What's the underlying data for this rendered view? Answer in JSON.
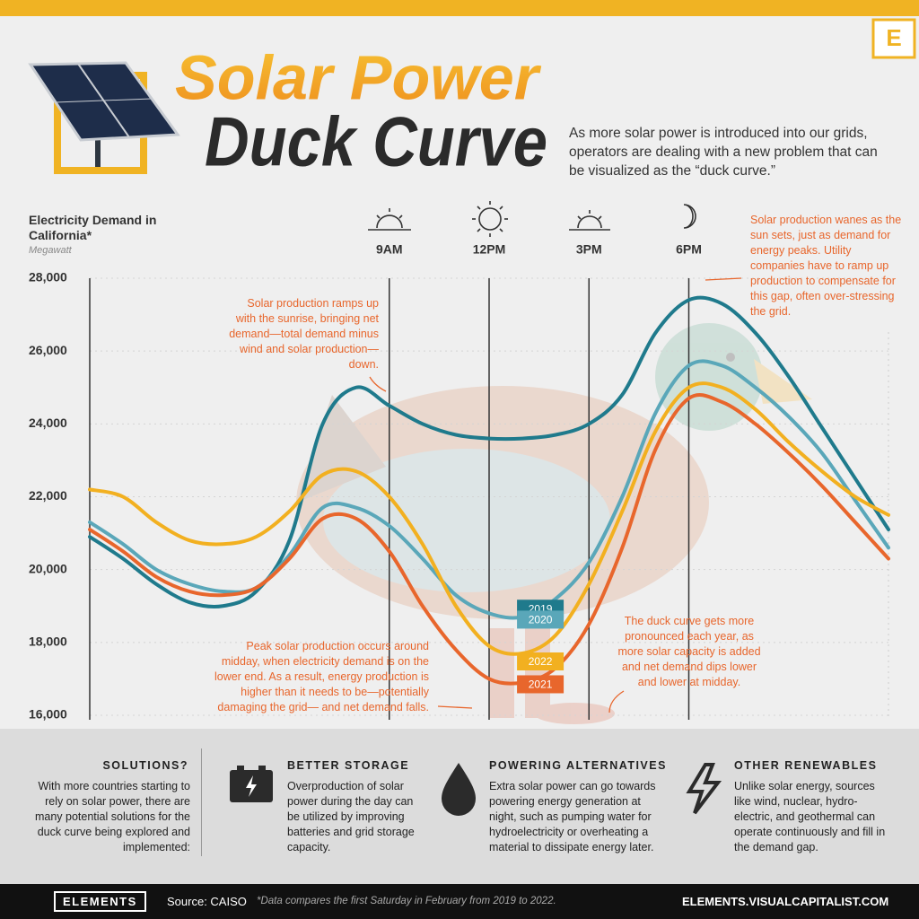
{
  "header": {
    "logo": "E",
    "title_line1": "Solar Power",
    "title_line2": "Duck Curve",
    "intro": "As more solar power is introduced into our grids, operators are dealing with a new problem that can be visualized as the “duck curve.”"
  },
  "chart_data": {
    "type": "line",
    "y_title": "Electricity Demand in California*",
    "y_unit": "Megawatt",
    "x": [
      0,
      1,
      2,
      3,
      4,
      5,
      6,
      7,
      8,
      9,
      10,
      11,
      12,
      13,
      14,
      15,
      16,
      17,
      18,
      19,
      20,
      21,
      22,
      23,
      24
    ],
    "xlim": [
      0,
      24
    ],
    "xticks": [
      {
        "value": 9,
        "label": "9AM"
      },
      {
        "value": 12,
        "label": "12PM"
      },
      {
        "value": 15,
        "label": "3PM"
      },
      {
        "value": 18,
        "label": "6PM"
      }
    ],
    "ylim": [
      16000,
      28000
    ],
    "yticks": [
      {
        "value": 16000,
        "label": "16,000"
      },
      {
        "value": 18000,
        "label": "18,000"
      },
      {
        "value": 20000,
        "label": "20,000"
      },
      {
        "value": 22000,
        "label": "22,000"
      },
      {
        "value": 24000,
        "label": "24,000"
      },
      {
        "value": 26000,
        "label": "26,000"
      },
      {
        "value": 28000,
        "label": "28,000"
      }
    ],
    "grid": true,
    "series": [
      {
        "name": "2019",
        "color": "#1f7a8c",
        "values": [
          20900,
          20300,
          19600,
          19100,
          19000,
          19400,
          20800,
          24000,
          25000,
          24500,
          24000,
          23700,
          23600,
          23600,
          23700,
          24000,
          24800,
          26500,
          27400,
          27300,
          26500,
          25300,
          23900,
          22500,
          21100
        ]
      },
      {
        "name": "2020",
        "color": "#5aa7b9",
        "values": [
          21300,
          20700,
          20000,
          19600,
          19400,
          19500,
          20400,
          21700,
          21700,
          21200,
          20300,
          19300,
          18800,
          18700,
          19200,
          20200,
          22000,
          24300,
          25600,
          25600,
          25000,
          24200,
          23200,
          21900,
          20600
        ]
      },
      {
        "name": "2022",
        "color": "#f2b020",
        "values": [
          22200,
          22000,
          21300,
          20800,
          20700,
          20900,
          21600,
          22600,
          22700,
          22000,
          20700,
          19000,
          17900,
          17700,
          18200,
          19600,
          21600,
          23800,
          25000,
          25000,
          24400,
          23500,
          22700,
          22000,
          21500
        ]
      },
      {
        "name": "2021",
        "color": "#e8662c",
        "values": [
          21100,
          20500,
          19800,
          19400,
          19300,
          19500,
          20300,
          21400,
          21400,
          20500,
          19000,
          17800,
          17000,
          16900,
          17300,
          18500,
          20600,
          23300,
          24700,
          24600,
          24000,
          23200,
          22300,
          21300,
          20300
        ]
      }
    ],
    "annotations": [
      "Solar production ramps up with the sunrise, bringing net demand—total demand minus wind and solar production—down.",
      "Solar production wanes as the sun sets, just as demand for energy peaks. Utility companies have to ramp up production to compensate for this gap, often over-stressing the grid.",
      "Peak solar production occurs around midday, when electricity demand is on the lower end. As a result, energy production is higher than it needs to be—potentially damaging the grid— and net demand falls.",
      "The duck curve gets more pronounced each year, as more solar capacity is added and net demand dips lower and lower at midday."
    ]
  },
  "solutions": {
    "heading": "SOLUTIONS?",
    "text": "With more countries starting to rely on solar power, there are many potential solutions for the duck curve being explored and implemented:",
    "items": [
      {
        "title": "BETTER STORAGE",
        "text": "Overproduction of solar power during the day can be utilized by improving batteries and grid storage capacity."
      },
      {
        "title": "POWERING ALTERNATIVES",
        "text": "Extra solar power can go towards powering energy generation at night, such as pumping water for hydroelectricity or overheating a material to dissipate energy later."
      },
      {
        "title": "OTHER RENEWABLES",
        "text": "Unlike solar energy, sources like wind, nuclear, hydro-electric, and geothermal can operate continuously and fill in the demand gap."
      }
    ]
  },
  "footer": {
    "brand": "ELEMENTS",
    "source": "Source: CAISO",
    "note": "*Data compares the first Saturday in February from 2019 to 2022.",
    "url": "ELEMENTS.VISUALCAPITALIST.COM"
  }
}
